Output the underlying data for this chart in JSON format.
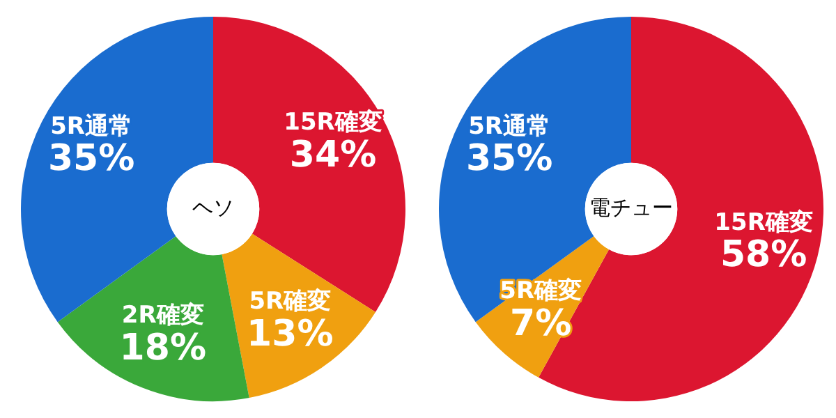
{
  "chart_data": [
    {
      "type": "donut",
      "title": "ヘソ",
      "categories": [
        "15R確変",
        "5R確変",
        "2R確変",
        "5R通常"
      ],
      "values": [
        34,
        13,
        18,
        35
      ],
      "value_labels": [
        "34%",
        "13%",
        "18%",
        "35%"
      ],
      "colors": [
        "#dc1630",
        "#f0a010",
        "#3aa83a",
        "#1a6ccf"
      ]
    },
    {
      "type": "donut",
      "title": "電チュー",
      "categories": [
        "15R確変",
        "5R確変",
        "5R通常"
      ],
      "values": [
        58,
        7,
        35
      ],
      "value_labels": [
        "58%",
        "7%",
        "35%"
      ],
      "colors": [
        "#dc1630",
        "#f0a010",
        "#1a6ccf"
      ]
    }
  ]
}
